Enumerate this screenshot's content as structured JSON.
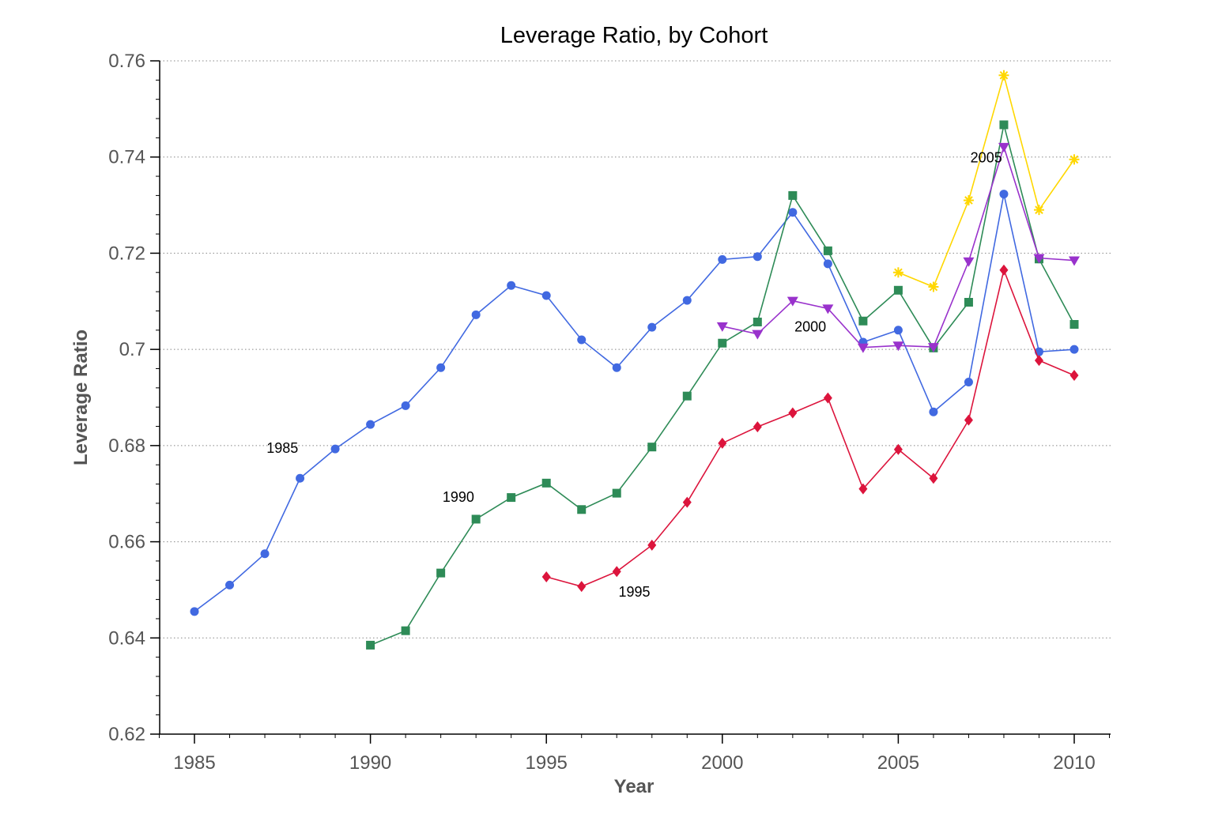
{
  "chart_data": {
    "type": "line",
    "title": "Leverage Ratio, by Cohort",
    "xlabel": "Year",
    "ylabel": "Leverage Ratio",
    "xlim": [
      1984,
      2011
    ],
    "ylim": [
      0.62,
      0.76
    ],
    "xticks": [
      1985,
      1990,
      1995,
      2000,
      2005,
      2010
    ],
    "xtick_labels": [
      "1985",
      "1990",
      "1995",
      "2000",
      "2005",
      "2010"
    ],
    "yticks": [
      0.62,
      0.64,
      0.66,
      0.68,
      0.7,
      0.72,
      0.74,
      0.76
    ],
    "ytick_labels": [
      "0.62",
      "0.64",
      "0.66",
      "0.68",
      "0.7",
      "0.72",
      "0.74",
      "0.76"
    ],
    "grid": "horizontal-dotted",
    "series": [
      {
        "label": "1985",
        "color": "#4169E1",
        "marker": "circle",
        "x": [
          1985,
          1986,
          1987,
          1988,
          1989,
          1990,
          1991,
          1992,
          1993,
          1994,
          1995,
          1996,
          1997,
          1998,
          1999,
          2000,
          2001,
          2002,
          2003,
          2004,
          2005,
          2006,
          2007,
          2008,
          2009,
          2010
        ],
        "y": [
          0.6455,
          0.651,
          0.6575,
          0.6732,
          0.6793,
          0.6844,
          0.6883,
          0.6962,
          0.7072,
          0.7133,
          0.7112,
          0.702,
          0.6962,
          0.7046,
          0.7102,
          0.7187,
          0.7193,
          0.7285,
          0.7178,
          0.7015,
          0.704,
          0.687,
          0.6932,
          0.7323,
          0.6995,
          0.7
        ]
      },
      {
        "label": "1990",
        "color": "#2E8B57",
        "marker": "square",
        "x": [
          1990,
          1991,
          1992,
          1993,
          1994,
          1995,
          1996,
          1997,
          1998,
          1999,
          2000,
          2001,
          2002,
          2003,
          2004,
          2005,
          2006,
          2007,
          2008,
          2009,
          2010
        ],
        "y": [
          0.6385,
          0.6415,
          0.6535,
          0.6647,
          0.6692,
          0.6722,
          0.6667,
          0.6701,
          0.6797,
          0.6903,
          0.7013,
          0.7057,
          0.732,
          0.7205,
          0.7059,
          0.7123,
          0.7003,
          0.7098,
          0.7467,
          0.7188,
          0.7052
        ]
      },
      {
        "label": "1995",
        "color": "#DC143C",
        "marker": "diamond",
        "x": [
          1995,
          1996,
          1997,
          1998,
          1999,
          2000,
          2001,
          2002,
          2003,
          2004,
          2005,
          2006,
          2007,
          2008,
          2009,
          2010
        ],
        "y": [
          0.6527,
          0.6507,
          0.6538,
          0.6593,
          0.6682,
          0.6805,
          0.6839,
          0.6868,
          0.6899,
          0.671,
          0.6792,
          0.6732,
          0.6853,
          0.7165,
          0.6977,
          0.6946
        ]
      },
      {
        "label": "2000",
        "color": "#9932CC",
        "marker": "triangle-down",
        "x": [
          2000,
          2001,
          2002,
          2003,
          2004,
          2005,
          2006,
          2007,
          2008,
          2009,
          2010
        ],
        "y": [
          0.7048,
          0.7032,
          0.7101,
          0.7085,
          0.7004,
          0.7008,
          0.7005,
          0.7183,
          0.7421,
          0.719,
          0.7185
        ]
      },
      {
        "label": "2005",
        "color": "#FFD700",
        "marker": "asterisk",
        "x": [
          2005,
          2006,
          2007,
          2008,
          2009,
          2010
        ],
        "y": [
          0.716,
          0.713,
          0.731,
          0.757,
          0.729,
          0.7395
        ]
      }
    ],
    "annotations": [
      {
        "text": "1985",
        "x": 1987.5,
        "y": 0.6795
      },
      {
        "text": "1990",
        "x": 1992.5,
        "y": 0.6693
      },
      {
        "text": "1995",
        "x": 1997.5,
        "y": 0.6496
      },
      {
        "text": "2000",
        "x": 2002.5,
        "y": 0.7047
      },
      {
        "text": "2005",
        "x": 2007.5,
        "y": 0.7399
      }
    ]
  }
}
